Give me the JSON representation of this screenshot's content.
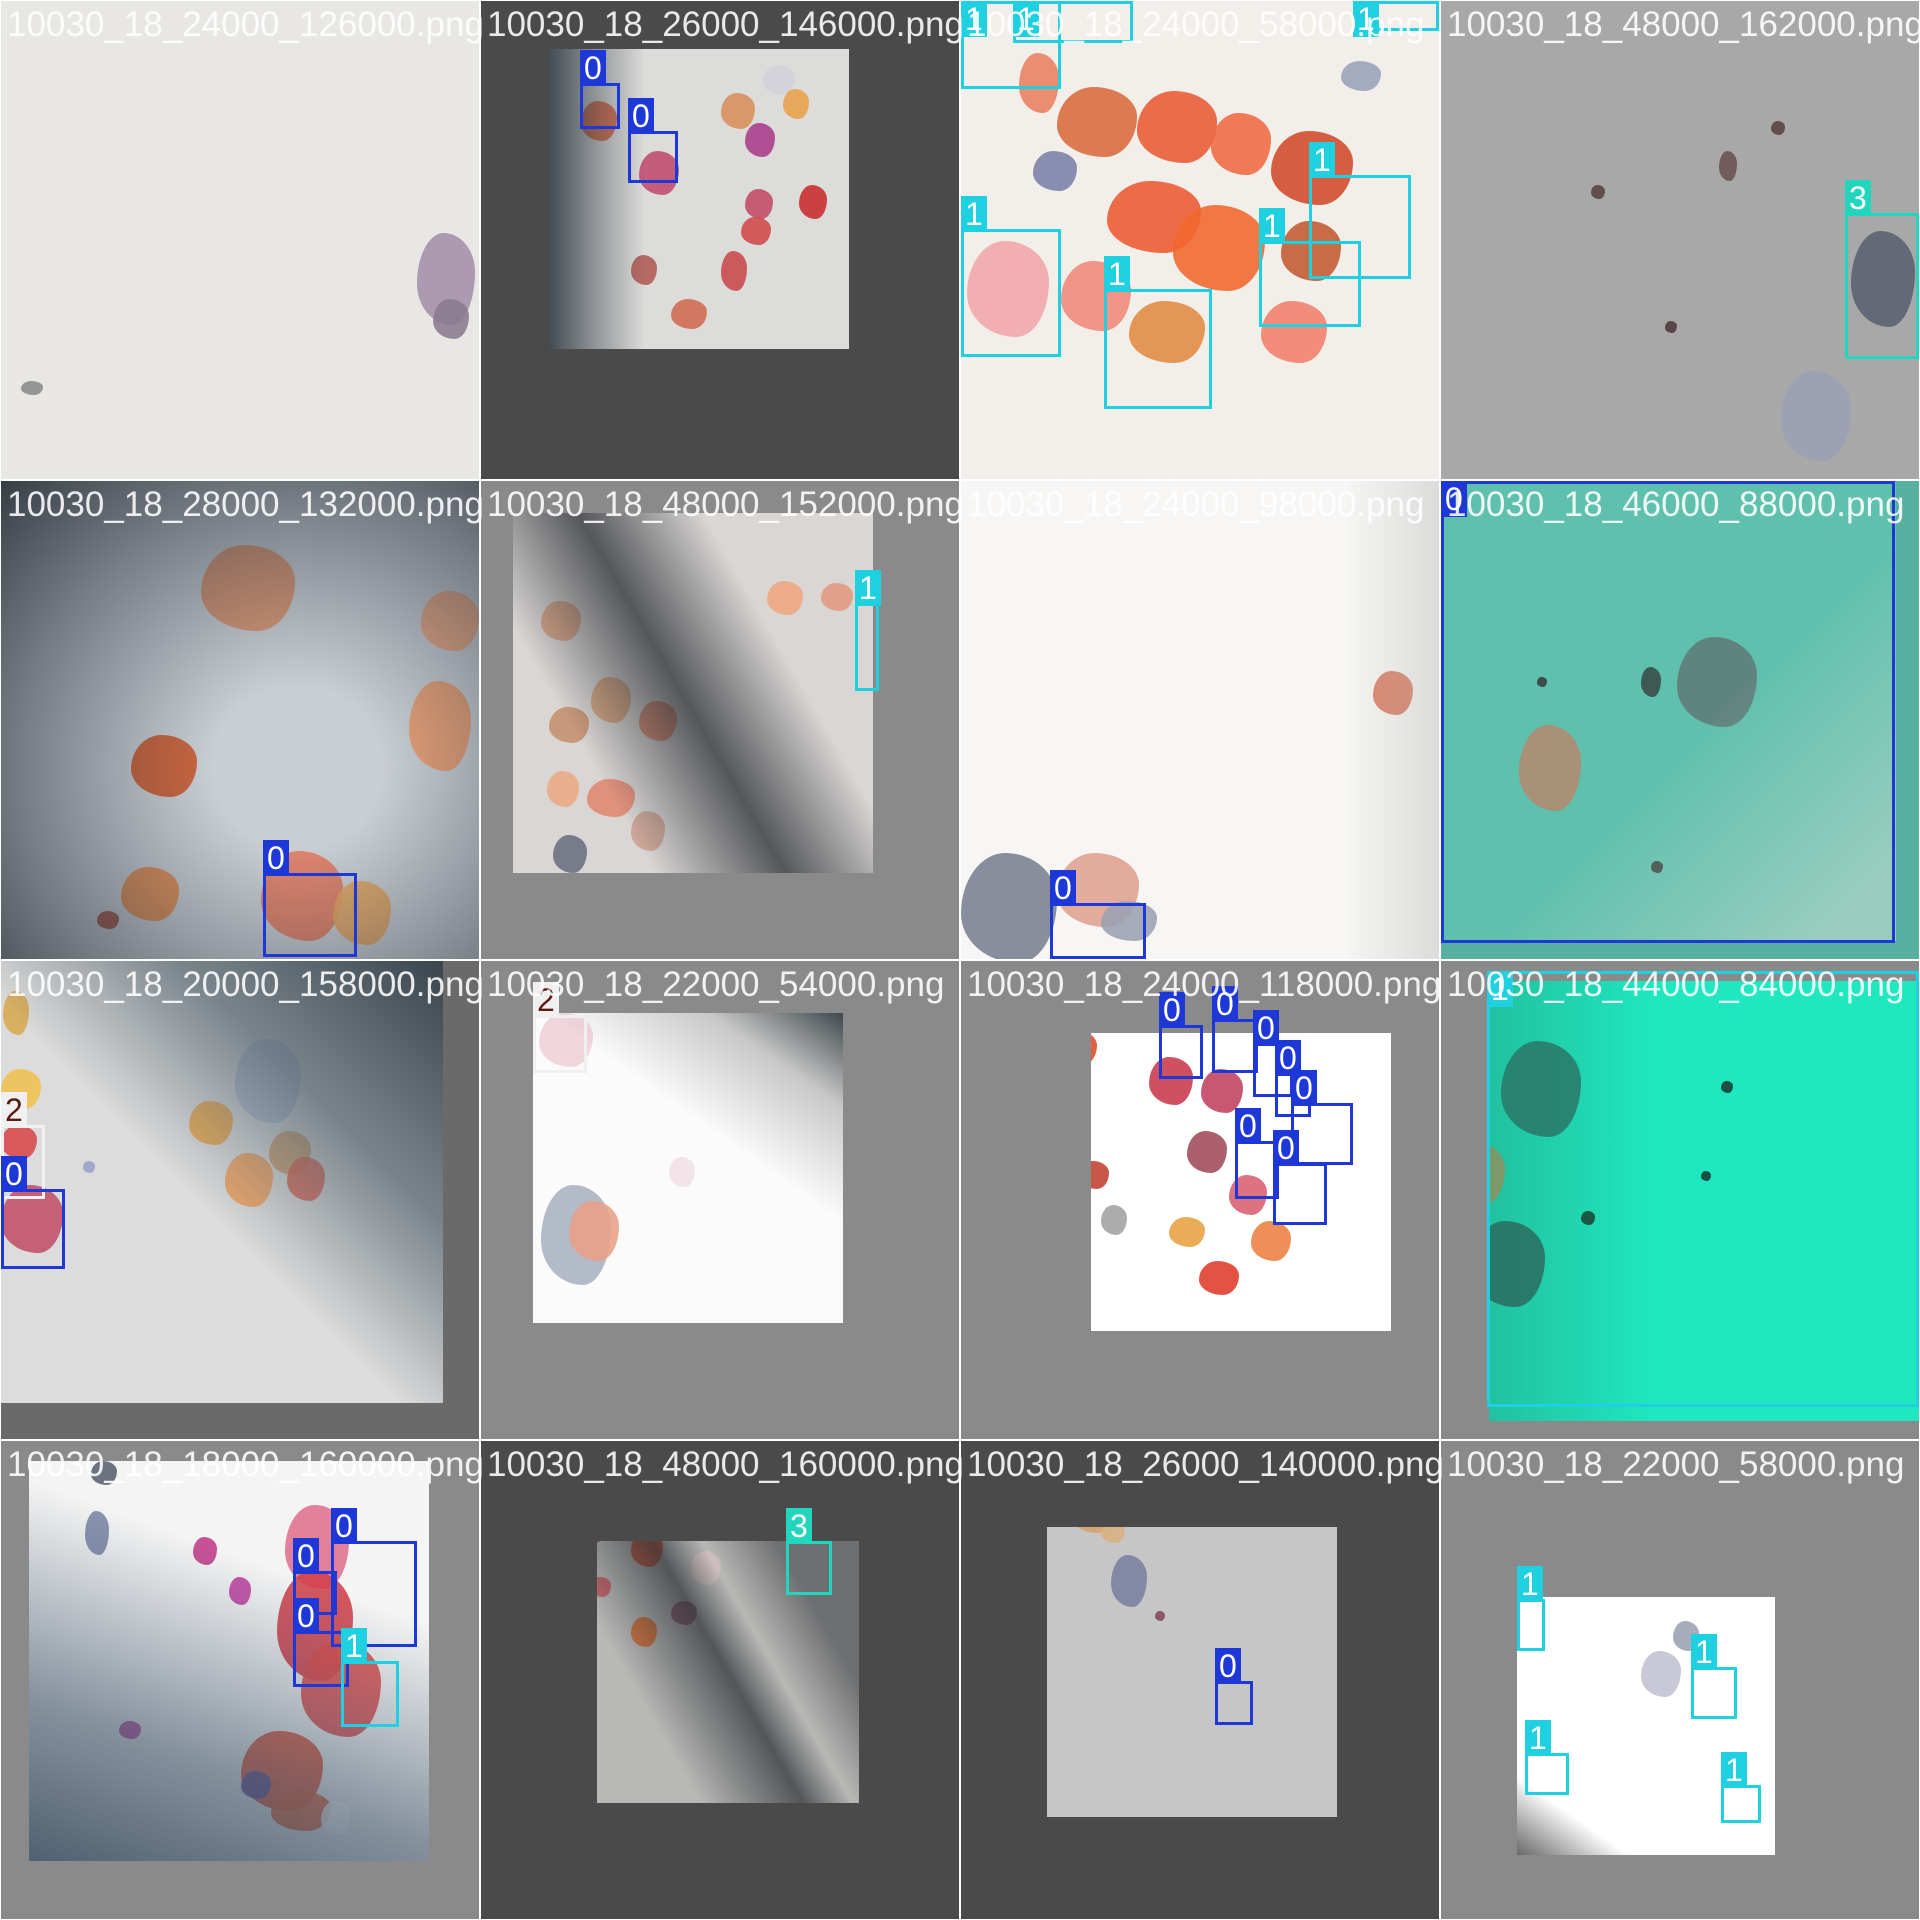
{
  "class_colors": {
    "0": "#1e38d8",
    "1": "#1fd0e0",
    "2": "#f0f0f0",
    "3": "#22d6bd"
  },
  "tiles": [
    {
      "label": "10030_18_24000_126000.png",
      "bg": "#d2d2d0",
      "photo_bg": "#e8e7e4",
      "boxes": []
    },
    {
      "label": "10030_18_26000_146000.png",
      "bg": "#4a4a4a",
      "photo_bg": "#dcdcda",
      "boxes": [
        {
          "cls": "0",
          "text": "0"
        },
        {
          "cls": "0",
          "text": "0"
        }
      ]
    },
    {
      "label": "10030_18_24000_58000.png",
      "bg": "#f2eeea",
      "photo_bg": "#f2eeea",
      "boxes": [
        {
          "cls": "1",
          "text": "1"
        },
        {
          "cls": "1",
          "text": "1"
        },
        {
          "cls": "1",
          "text": "1"
        },
        {
          "cls": "1",
          "text": "1"
        },
        {
          "cls": "1",
          "text": "1"
        },
        {
          "cls": "1",
          "text": "1"
        },
        {
          "cls": "1",
          "text": "1"
        }
      ]
    },
    {
      "label": "10030_18_48000_162000.png",
      "bg": "#a6a6a6",
      "photo_bg": "#a9a8a8",
      "boxes": [
        {
          "cls": "3",
          "text": "3"
        }
      ]
    },
    {
      "label": "10030_18_28000_132000.png",
      "bg": "#c9ced4",
      "photo_bg": "#c9ced4",
      "boxes": [
        {
          "cls": "0",
          "text": "0"
        }
      ]
    },
    {
      "label": "10030_18_48000_152000.png",
      "bg": "#8a8a8a",
      "photo_bg": "#d9d6d4",
      "boxes": [
        {
          "cls": "1",
          "text": "1"
        }
      ]
    },
    {
      "label": "10030_18_24000_98000.png",
      "bg": "#f7f6f4",
      "photo_bg": "#f7f6f4",
      "boxes": [
        {
          "cls": "0",
          "text": "0"
        }
      ]
    },
    {
      "label": "10030_18_46000_88000.png",
      "bg": "#58b0a0",
      "photo_bg": "#5fc0ad",
      "boxes": [
        {
          "cls": "0",
          "text": "0"
        }
      ]
    },
    {
      "label": "10030_18_20000_158000.png",
      "bg": "#6a6a6a",
      "photo_bg": "#dcdcdc",
      "boxes": [
        {
          "cls": "2",
          "text": "2"
        },
        {
          "cls": "0",
          "text": "0"
        }
      ]
    },
    {
      "label": "10030_18_22000_54000.png",
      "bg": "#8a8a8a",
      "photo_bg": "#fbfbfb",
      "boxes": [
        {
          "cls": "2",
          "text": "2"
        }
      ]
    },
    {
      "label": "10030_18_24000_118000.png",
      "bg": "#8a8a8a",
      "photo_bg": "#ffffff",
      "boxes": [
        {
          "cls": "0",
          "text": "0"
        },
        {
          "cls": "0",
          "text": "0"
        },
        {
          "cls": "0",
          "text": "0"
        },
        {
          "cls": "0",
          "text": "0"
        },
        {
          "cls": "0",
          "text": "0"
        },
        {
          "cls": "0",
          "text": "0"
        },
        {
          "cls": "0",
          "text": "0"
        }
      ]
    },
    {
      "label": "10030_18_44000_84000.png",
      "bg": "#8a8a8a",
      "photo_bg": "#1fe8c0",
      "boxes": [
        {
          "cls": "1",
          "text": "1"
        }
      ]
    },
    {
      "label": "10030_18_18000_160000.png",
      "bg": "#8a8a8a",
      "photo_bg": "#f4f4f4",
      "boxes": [
        {
          "cls": "0",
          "text": "0"
        },
        {
          "cls": "0",
          "text": "0"
        },
        {
          "cls": "0",
          "text": "0"
        },
        {
          "cls": "1",
          "text": "1"
        }
      ]
    },
    {
      "label": "10030_18_48000_160000.png",
      "bg": "#4a4a4a",
      "photo_bg": "#b8b8b6",
      "boxes": [
        {
          "cls": "3",
          "text": "3"
        }
      ]
    },
    {
      "label": "10030_18_26000_140000.png",
      "bg": "#4a4a4a",
      "photo_bg": "#c6c6c6",
      "boxes": [
        {
          "cls": "0",
          "text": "0"
        }
      ]
    },
    {
      "label": "10030_18_22000_58000.png",
      "bg": "#8a8a8a",
      "photo_bg": "#ffffff",
      "boxes": [
        {
          "cls": "1",
          "text": "1"
        },
        {
          "cls": "1",
          "text": "1"
        },
        {
          "cls": "1",
          "text": "1"
        },
        {
          "cls": "1",
          "text": "1"
        }
      ]
    }
  ]
}
